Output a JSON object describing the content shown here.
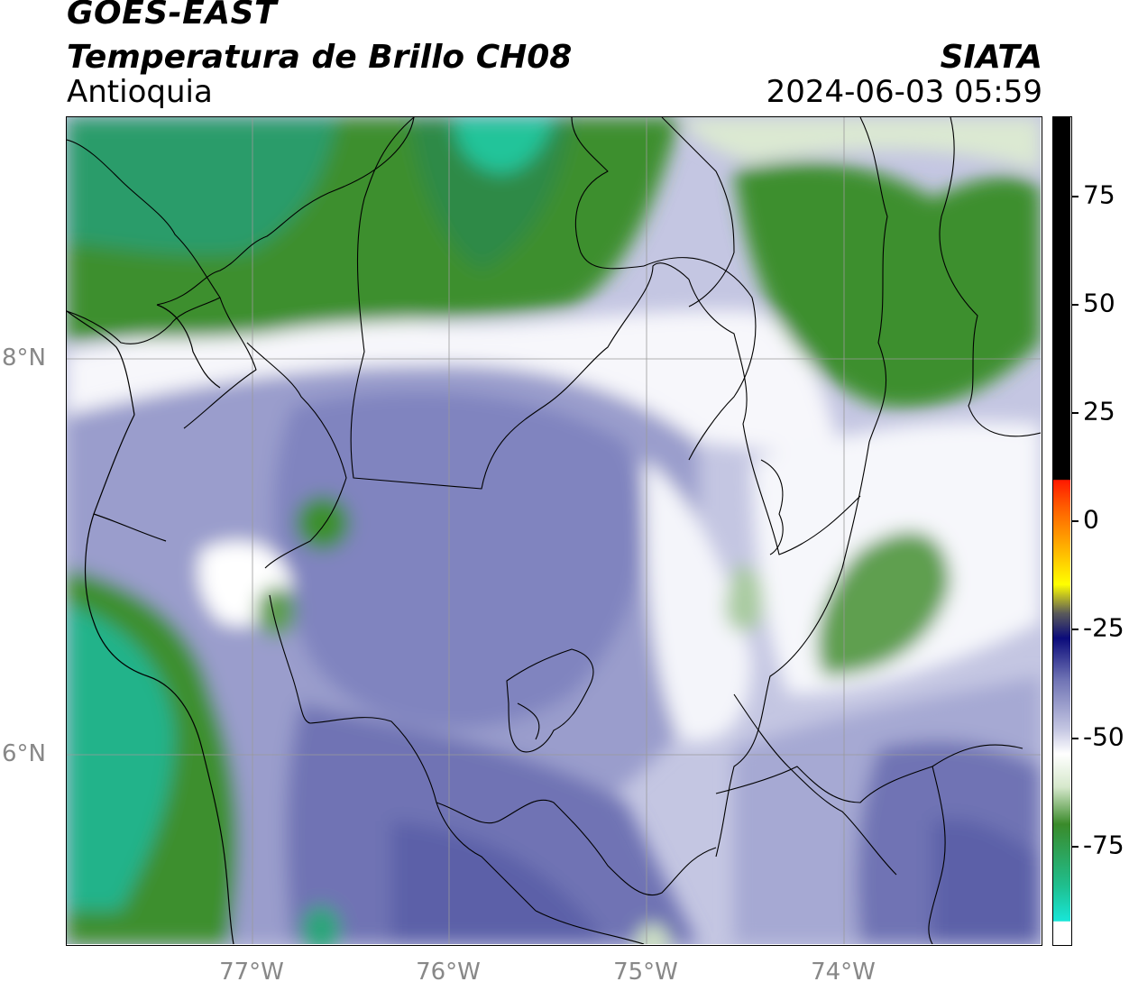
{
  "header": {
    "satellite": "GOES-EAST",
    "product": "Temperatura de Brillo CH08",
    "region": "Antioquia",
    "institution": "SIATA",
    "datetime": "2024-06-03 05:59"
  },
  "map": {
    "latitude_labels": [
      "8°N",
      "6°N"
    ],
    "longitude_labels": [
      "77°W",
      "76°W",
      "75°W",
      "74°W"
    ]
  },
  "colorbar": {
    "tick_labels": [
      "75",
      "50",
      "25",
      "0",
      "-25",
      "-50",
      "-75"
    ],
    "colors": {
      "cyan": "#18e6d8",
      "teal": "#1fbf8f",
      "green": "#3a8a2a",
      "light_green": "#d6e8cc",
      "white": "#ffffff",
      "lavender": "#b8badb",
      "blue_purple": "#6f73b4",
      "navy": "#0b0b7a",
      "yellow": "#ffff00",
      "orange": "#ff8c00",
      "red": "#ff1a00",
      "black": "#000000"
    }
  }
}
